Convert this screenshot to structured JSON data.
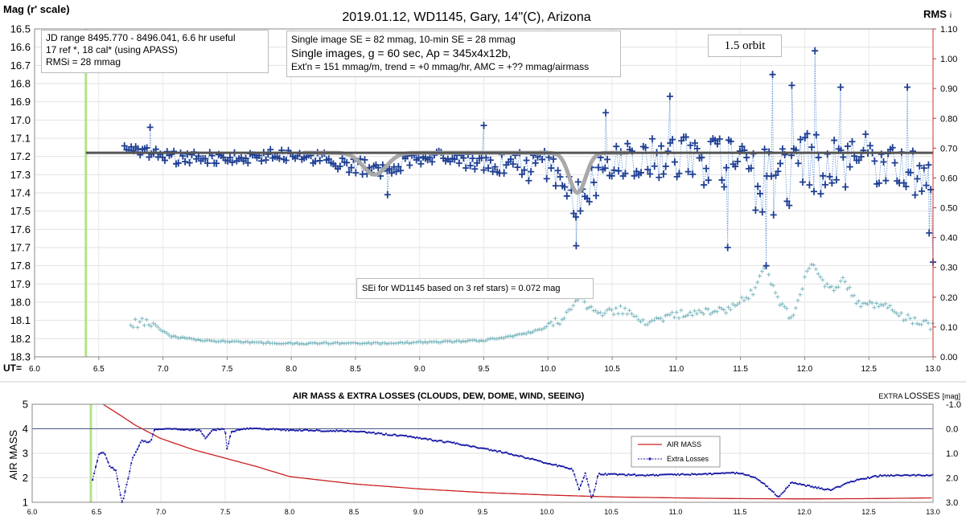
{
  "chart_data": [
    {
      "type": "scatter",
      "title": "2019.01.12, WD1145, Gary, 14\"(C), Arizona",
      "ylabel": "Mag (r' scale)",
      "y2label": "RMS",
      "y2label_suffix": "i",
      "xlabel": "UT=",
      "xlim": [
        6.0,
        13.0
      ],
      "ylim": [
        16.5,
        18.3
      ],
      "y2lim": [
        0.0,
        1.1
      ],
      "x_ticks": [
        6.0,
        6.5,
        7.0,
        7.5,
        8.0,
        8.5,
        9.0,
        9.5,
        10.0,
        10.5,
        11.0,
        11.5,
        12.0,
        12.5,
        13.0
      ],
      "y_ticks": [
        16.5,
        16.6,
        16.7,
        16.8,
        16.9,
        17.0,
        17.1,
        17.2,
        17.3,
        17.4,
        17.5,
        17.6,
        17.7,
        17.8,
        17.9,
        18.0,
        18.1,
        18.2,
        18.3
      ],
      "y2_ticks": [
        1.1,
        1.0,
        0.9,
        0.8,
        0.7,
        0.6,
        0.5,
        0.4,
        0.3,
        0.2,
        0.1,
        0.0
      ],
      "grid": true,
      "annotations": {
        "jd": [
          "JD range 8495.770 - 8496.041, 6.6 hr useful",
          "17 ref *, 18 cal* (using APASS)",
          "RMSi = 28 mmag"
        ],
        "se": [
          "Single image SE = 82 mmag, 10-min SE = 28 mmag",
          "Single images, g = 60 sec, Ap = 345x4x12b,",
          "Ext'n = 151 mmag/m, trend = +0 mmag/hr, AMC = +?? mmag/airmass"
        ],
        "orbit": "1.5 orbit",
        "sei": "SEi for WD1145 based on 3 ref stars) = 0.072 mag"
      },
      "vertical_marker_x": 6.4,
      "baseline_mag": 17.18,
      "dips": [
        {
          "center": 8.65,
          "depth": 0.12,
          "width": 0.13
        },
        {
          "center": 10.23,
          "depth": 0.22,
          "width": 0.09
        }
      ],
      "mag_series": {
        "keypoints": [
          [
            6.7,
            17.15,
            0.02
          ],
          [
            7.0,
            17.2,
            0.05
          ],
          [
            7.5,
            17.21,
            0.05
          ],
          [
            8.0,
            17.19,
            0.04
          ],
          [
            8.5,
            17.25,
            0.06
          ],
          [
            8.7,
            17.3,
            0.07
          ],
          [
            9.0,
            17.2,
            0.05
          ],
          [
            9.5,
            17.23,
            0.06
          ],
          [
            9.8,
            17.25,
            0.1
          ],
          [
            10.0,
            17.25,
            0.12
          ],
          [
            10.25,
            17.45,
            0.14
          ],
          [
            10.5,
            17.2,
            0.14
          ],
          [
            11.0,
            17.2,
            0.15
          ],
          [
            11.4,
            17.25,
            0.18
          ],
          [
            11.7,
            17.35,
            0.25
          ],
          [
            12.0,
            17.25,
            0.22
          ],
          [
            12.5,
            17.2,
            0.18
          ],
          [
            13.0,
            17.3,
            0.2
          ]
        ],
        "step": 0.0175,
        "outliers": [
          [
            6.9,
            17.04
          ],
          [
            8.75,
            17.41
          ],
          [
            9.5,
            17.03
          ],
          [
            10.22,
            17.69
          ],
          [
            10.45,
            16.96
          ],
          [
            10.95,
            16.87
          ],
          [
            11.4,
            17.7
          ],
          [
            11.7,
            17.8
          ],
          [
            11.75,
            16.75
          ],
          [
            11.9,
            16.81
          ],
          [
            12.08,
            16.62
          ],
          [
            12.28,
            16.82
          ],
          [
            12.8,
            16.82
          ],
          [
            12.97,
            17.62
          ],
          [
            13.0,
            17.78
          ]
        ]
      },
      "rms_series": {
        "keypoints": [
          [
            6.75,
            0.11
          ],
          [
            6.9,
            0.12
          ],
          [
            7.05,
            0.07
          ],
          [
            7.3,
            0.055
          ],
          [
            7.6,
            0.05
          ],
          [
            8.0,
            0.045
          ],
          [
            8.5,
            0.045
          ],
          [
            8.75,
            0.045
          ],
          [
            9.5,
            0.055
          ],
          [
            9.8,
            0.075
          ],
          [
            10.0,
            0.1
          ],
          [
            10.15,
            0.14
          ],
          [
            10.25,
            0.19
          ],
          [
            10.4,
            0.15
          ],
          [
            10.6,
            0.16
          ],
          [
            10.8,
            0.11
          ],
          [
            11.0,
            0.14
          ],
          [
            11.4,
            0.16
          ],
          [
            11.6,
            0.22
          ],
          [
            11.7,
            0.3
          ],
          [
            11.8,
            0.19
          ],
          [
            11.9,
            0.12
          ],
          [
            12.05,
            0.32
          ],
          [
            12.2,
            0.22
          ],
          [
            12.3,
            0.26
          ],
          [
            12.4,
            0.18
          ],
          [
            12.6,
            0.17
          ],
          [
            12.8,
            0.13
          ],
          [
            13.0,
            0.1
          ]
        ],
        "step": 0.0175
      }
    },
    {
      "type": "line",
      "title": "AIR MASS & EXTRA LOSSES (CLOUDS, DEW, DOME, WIND, SEEING)",
      "ylabel": "AIR MASS",
      "y2label": "EXTRA LOSSES [mag]",
      "y2label_a": "EXTRA ",
      "y2label_b": "LOSSES ",
      "y2label_c": "[mag]",
      "xlim": [
        6.0,
        13.0
      ],
      "ylim": [
        1,
        5
      ],
      "y2lim": [
        3.0,
        -1.0
      ],
      "x_ticks": [
        6.0,
        6.5,
        7.0,
        7.5,
        8.0,
        8.5,
        9.0,
        9.5,
        10.0,
        10.5,
        11.0,
        11.5,
        12.0,
        12.5,
        13.0
      ],
      "y_ticks": [
        1,
        2,
        3,
        4,
        5
      ],
      "y2_ticks": [
        -1.0,
        0.0,
        1.0,
        2.0,
        3.0
      ],
      "legend": {
        "position": "right-middle",
        "entries": [
          "AIR MASS",
          "Extra Losses"
        ]
      },
      "reference_line_losses": 0.0,
      "series": [
        {
          "name": "AIR MASS",
          "color": "#cc1f1f",
          "points": [
            [
              6.55,
              5.0
            ],
            [
              6.7,
              4.5
            ],
            [
              6.8,
              4.15
            ],
            [
              7.0,
              3.6
            ],
            [
              7.25,
              3.15
            ],
            [
              7.5,
              2.8
            ],
            [
              7.75,
              2.45
            ],
            [
              8.0,
              2.05
            ],
            [
              8.5,
              1.75
            ],
            [
              9.0,
              1.55
            ],
            [
              9.5,
              1.4
            ],
            [
              10.0,
              1.3
            ],
            [
              10.5,
              1.22
            ],
            [
              11.0,
              1.18
            ],
            [
              11.5,
              1.15
            ],
            [
              12.0,
              1.14
            ],
            [
              12.5,
              1.15
            ],
            [
              13.0,
              1.18
            ]
          ]
        },
        {
          "name": "Extra Losses",
          "color": "#1a1aa6",
          "points": [
            [
              6.47,
              2.1
            ],
            [
              6.52,
              1.0
            ],
            [
              6.56,
              0.95
            ],
            [
              6.6,
              1.5
            ],
            [
              6.65,
              1.7
            ],
            [
              6.7,
              3.1
            ],
            [
              6.78,
              1.2
            ],
            [
              6.85,
              0.5
            ],
            [
              6.92,
              0.55
            ],
            [
              6.95,
              0.05
            ],
            [
              7.0,
              0.0
            ],
            [
              7.3,
              0.05
            ],
            [
              7.35,
              0.4
            ],
            [
              7.4,
              0.05
            ],
            [
              7.5,
              0.0
            ],
            [
              7.51,
              0.9
            ],
            [
              7.55,
              0.1
            ],
            [
              7.7,
              -0.02
            ],
            [
              8.0,
              0.05
            ],
            [
              8.5,
              0.1
            ],
            [
              8.9,
              0.3
            ],
            [
              9.3,
              0.6
            ],
            [
              9.7,
              1.0
            ],
            [
              10.0,
              1.4
            ],
            [
              10.2,
              1.65
            ],
            [
              10.25,
              2.5
            ],
            [
              10.3,
              1.8
            ],
            [
              10.35,
              2.9
            ],
            [
              10.4,
              1.85
            ],
            [
              10.8,
              1.9
            ],
            [
              11.2,
              1.85
            ],
            [
              11.5,
              1.8
            ],
            [
              11.6,
              1.95
            ],
            [
              11.7,
              2.3
            ],
            [
              11.8,
              2.8
            ],
            [
              11.9,
              2.2
            ],
            [
              12.0,
              2.3
            ],
            [
              12.2,
              2.5
            ],
            [
              12.4,
              2.1
            ],
            [
              12.6,
              1.9
            ],
            [
              13.0,
              1.9
            ]
          ]
        }
      ]
    }
  ]
}
